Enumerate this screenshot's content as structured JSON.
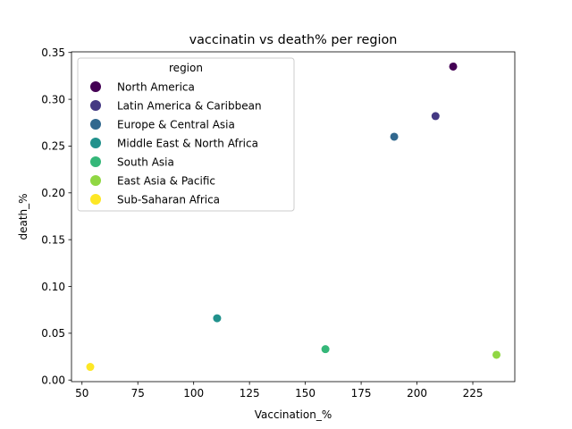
{
  "chart_data": {
    "type": "scatter",
    "title": "vaccinatin vs death% per region",
    "xlabel": "Vaccination_%",
    "ylabel": "death_%",
    "xlim": [
      45.3,
      243.8
    ],
    "ylim": [
      -0.0017,
      0.3507
    ],
    "xticks": [
      50,
      75,
      100,
      125,
      150,
      175,
      200,
      225
    ],
    "xtick_labels": [
      "50",
      "75",
      "100",
      "125",
      "150",
      "175",
      "200",
      "225"
    ],
    "yticks": [
      0.0,
      0.05,
      0.1,
      0.15,
      0.2,
      0.25,
      0.3,
      0.35
    ],
    "ytick_labels": [
      "0.00",
      "0.05",
      "0.10",
      "0.15",
      "0.20",
      "0.25",
      "0.30",
      "0.35"
    ],
    "grid": false,
    "legend": {
      "title": "region",
      "placement": "top-left",
      "entries": [
        {
          "label": "North America",
          "color": "#440154"
        },
        {
          "label": "Latin America & Caribbean",
          "color": "#443983"
        },
        {
          "label": "Europe & Central Asia",
          "color": "#31688e"
        },
        {
          "label": "Middle East & North Africa",
          "color": "#21918c"
        },
        {
          "label": "South Asia",
          "color": "#35b779"
        },
        {
          "label": "East Asia & Pacific",
          "color": "#90d743"
        },
        {
          "label": "Sub-Saharan Africa",
          "color": "#fde725"
        }
      ]
    },
    "points": [
      {
        "region": "North America",
        "x": 216.2,
        "y": 0.335,
        "color": "#440154"
      },
      {
        "region": "Latin America & Caribbean",
        "x": 208.3,
        "y": 0.282,
        "color": "#443983"
      },
      {
        "region": "Europe & Central Asia",
        "x": 189.8,
        "y": 0.26,
        "color": "#31688e"
      },
      {
        "region": "Middle East & North Africa",
        "x": 110.5,
        "y": 0.066,
        "color": "#21918c"
      },
      {
        "region": "South Asia",
        "x": 159.0,
        "y": 0.033,
        "color": "#35b779"
      },
      {
        "region": "East Asia & Pacific",
        "x": 235.6,
        "y": 0.027,
        "color": "#90d743"
      },
      {
        "region": "Sub-Saharan Africa",
        "x": 53.7,
        "y": 0.014,
        "color": "#fde725"
      }
    ]
  }
}
